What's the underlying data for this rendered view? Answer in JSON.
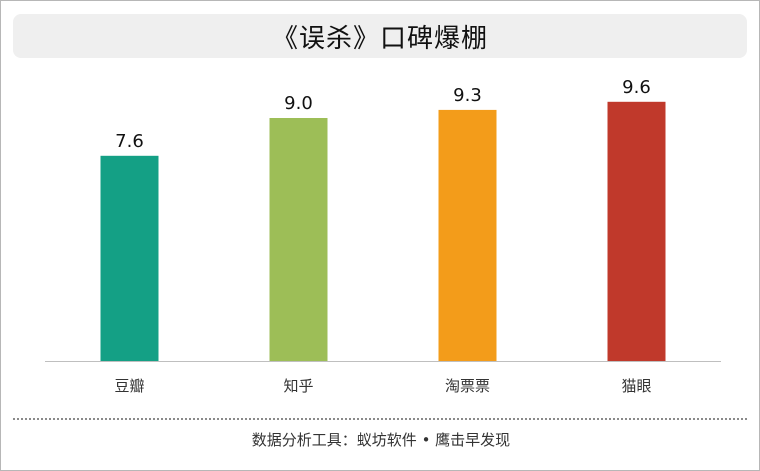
{
  "chart_data": {
    "type": "bar",
    "title": "《误杀》口碑爆棚",
    "categories": [
      "豆瓣",
      "知乎",
      "淘票票",
      "猫眼"
    ],
    "values": [
      7.6,
      9.0,
      9.3,
      9.6
    ],
    "value_labels": [
      "7.6",
      "9.0",
      "9.3",
      "9.6"
    ],
    "colors": [
      "#14a085",
      "#9dbe57",
      "#f39c1a",
      "#c0392b"
    ],
    "ylim": [
      0,
      10
    ],
    "grid": false,
    "legend": "none"
  },
  "footer": "数据分析工具：蚁坊软件 • 鹰击早发现"
}
